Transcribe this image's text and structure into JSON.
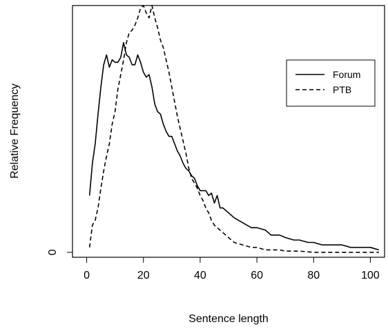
{
  "chart_data": {
    "type": "line",
    "xlabel": "Sentence length",
    "ylabel": "Relative Frequency",
    "xlim": [
      -5,
      105
    ],
    "ylim": [
      -0.02,
      1.0
    ],
    "x_ticks": [
      0,
      20,
      40,
      60,
      80,
      100
    ],
    "x_tick_labels": [
      "0",
      "20",
      "40",
      "60",
      "80",
      "100"
    ],
    "y_ticks": [
      0
    ],
    "y_tick_labels": [
      "0"
    ],
    "grid": false,
    "legend_position": "top-right",
    "series": [
      {
        "name": "Forum",
        "style": "solid",
        "color": "#000000",
        "x": [
          1,
          2,
          3,
          4,
          5,
          6,
          7,
          8,
          9,
          10,
          11,
          12,
          13,
          14,
          15,
          16,
          17,
          18,
          19,
          20,
          21,
          22,
          23,
          24,
          25,
          26,
          27,
          28,
          29,
          30,
          31,
          32,
          33,
          34,
          35,
          36,
          37,
          38,
          39,
          40,
          41,
          42,
          43,
          44,
          45,
          46,
          47,
          48,
          50,
          52,
          55,
          58,
          60,
          63,
          65,
          68,
          70,
          73,
          75,
          78,
          80,
          83,
          85,
          88,
          90,
          93,
          95,
          98,
          100,
          103
        ],
        "y": [
          0.23,
          0.36,
          0.44,
          0.56,
          0.67,
          0.76,
          0.8,
          0.75,
          0.78,
          0.77,
          0.77,
          0.79,
          0.85,
          0.8,
          0.79,
          0.76,
          0.76,
          0.8,
          0.77,
          0.73,
          0.71,
          0.72,
          0.67,
          0.6,
          0.57,
          0.56,
          0.52,
          0.49,
          0.47,
          0.47,
          0.44,
          0.41,
          0.39,
          0.36,
          0.34,
          0.33,
          0.31,
          0.3,
          0.27,
          0.25,
          0.25,
          0.25,
          0.23,
          0.24,
          0.2,
          0.23,
          0.18,
          0.18,
          0.16,
          0.14,
          0.12,
          0.1,
          0.1,
          0.09,
          0.07,
          0.07,
          0.06,
          0.05,
          0.05,
          0.04,
          0.04,
          0.03,
          0.03,
          0.03,
          0.03,
          0.02,
          0.02,
          0.02,
          0.02,
          0.01
        ]
      },
      {
        "name": "PTB",
        "style": "dashed",
        "color": "#000000",
        "x": [
          1,
          2,
          3,
          4,
          5,
          6,
          7,
          8,
          9,
          10,
          11,
          12,
          13,
          14,
          15,
          16,
          17,
          18,
          19,
          20,
          21,
          22,
          23,
          24,
          25,
          26,
          27,
          28,
          29,
          30,
          31,
          32,
          33,
          34,
          35,
          36,
          37,
          38,
          39,
          40,
          41,
          42,
          43,
          44,
          45,
          46,
          47,
          48,
          50,
          52,
          55,
          58,
          60,
          63,
          65,
          68,
          70,
          75,
          80,
          90,
          100,
          103
        ],
        "y": [
          0.02,
          0.11,
          0.13,
          0.18,
          0.26,
          0.33,
          0.39,
          0.44,
          0.52,
          0.57,
          0.66,
          0.72,
          0.78,
          0.85,
          0.89,
          0.9,
          0.92,
          0.95,
          0.99,
          1.0,
          0.97,
          0.95,
          1.0,
          0.95,
          0.91,
          0.86,
          0.83,
          0.78,
          0.73,
          0.67,
          0.61,
          0.55,
          0.5,
          0.45,
          0.4,
          0.34,
          0.3,
          0.28,
          0.26,
          0.23,
          0.21,
          0.18,
          0.16,
          0.13,
          0.11,
          0.1,
          0.09,
          0.08,
          0.06,
          0.04,
          0.03,
          0.02,
          0.02,
          0.01,
          0.01,
          0.01,
          0.005,
          0.005,
          0.0,
          0.0,
          0.0,
          0.0
        ]
      }
    ]
  }
}
